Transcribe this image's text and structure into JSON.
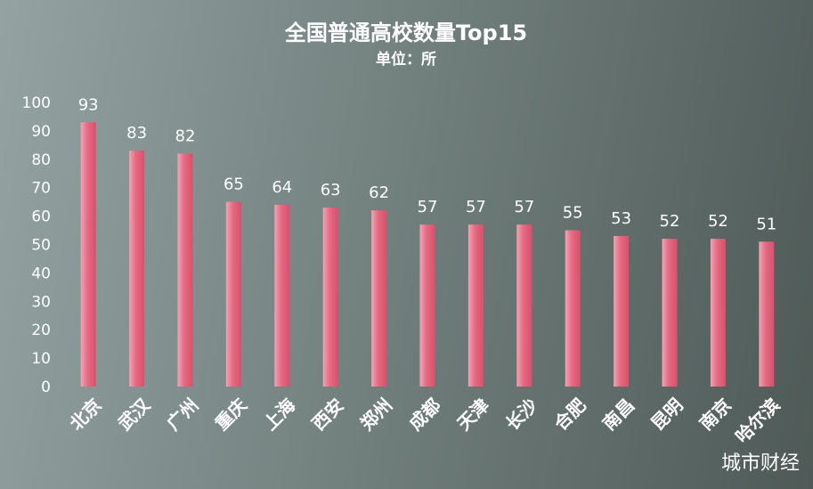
{
  "chart_data": {
    "type": "bar",
    "title": "全国普通高校数量Top15",
    "subtitle": "单位：所",
    "categories": [
      "北京",
      "武汉",
      "广州",
      "重庆",
      "上海",
      "西安",
      "郑州",
      "成都",
      "天津",
      "长沙",
      "合肥",
      "南昌",
      "昆明",
      "南京",
      "哈尔滨"
    ],
    "values": [
      93,
      83,
      82,
      65,
      64,
      63,
      62,
      57,
      57,
      57,
      55,
      53,
      52,
      52,
      51
    ],
    "ylim": [
      0,
      100
    ],
    "yticks": [
      0,
      10,
      20,
      30,
      40,
      50,
      60,
      70,
      80,
      90,
      100
    ],
    "grid": false,
    "legend": "none",
    "bar_color": "#d9506b",
    "bar_highlight": "#f4a3b2",
    "data_labels": true
  },
  "watermark": "城市财经"
}
